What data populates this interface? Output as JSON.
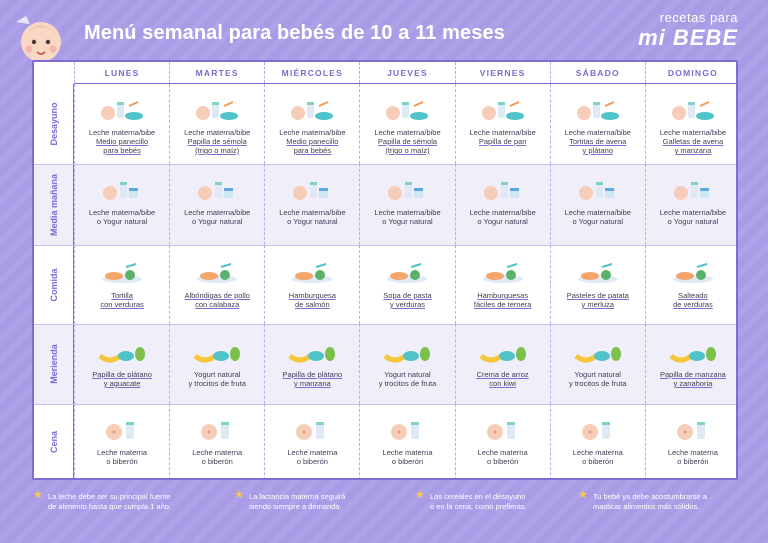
{
  "title": "Menú semanal para bebés de 10 a 11 meses",
  "brand": {
    "top": "recetas para",
    "bottom": "mi BEBE"
  },
  "days": [
    "LUNES",
    "MARTES",
    "MIÉRCOLES",
    "JUEVES",
    "VIERNES",
    "SÁBADO",
    "DOMINGO"
  ],
  "meals": [
    {
      "name": "Desayuno",
      "cells": [
        {
          "l1": "Leche materna/bibe",
          "l2": "Medio panecillo",
          "l3": "para bebés",
          "icon": "bottle-bread-icon"
        },
        {
          "l1": "Leche materna/bibe",
          "l2": "Papilla de sémola",
          "l3": "(trigo o maíz)",
          "icon": "bottle-bowl-icon"
        },
        {
          "l1": "Leche materna/bibe",
          "l2": "Medio panecillo",
          "l3": "para bebés",
          "icon": "bottle-bread-icon"
        },
        {
          "l1": "Leche materna/bibe",
          "l2": "Papilla de sémola",
          "l3": "(trigo o maíz)",
          "icon": "bottle-bowl-icon"
        },
        {
          "l1": "Leche materna/bibe",
          "l2": "Papilla de pan",
          "l3": "",
          "icon": "bottle-bowl-icon"
        },
        {
          "l1": "Leche materna/bibe",
          "l2": "Tortitas de avena",
          "l3": "y plátano",
          "icon": "bottle-pancake-icon"
        },
        {
          "l1": "Leche materna/bibe",
          "l2": "Galletas de avena",
          "l3": "y manzana",
          "icon": "bottle-cookie-icon"
        }
      ]
    },
    {
      "name": "Media mañana",
      "cells": [
        {
          "l1": "Leche materna/bibe",
          "l2": "o Yogur natural",
          "l3": ""
        },
        {
          "l1": "Leche materna/bibe",
          "l2": "o Yogur natural",
          "l3": ""
        },
        {
          "l1": "Leche materna/bibe",
          "l2": "o Yogur natural",
          "l3": ""
        },
        {
          "l1": "Leche materna/bibe",
          "l2": "o Yogur natural",
          "l3": ""
        },
        {
          "l1": "Leche materna/bibe",
          "l2": "o Yogur natural",
          "l3": ""
        },
        {
          "l1": "Leche materna/bibe",
          "l2": "o Yogur natural",
          "l3": ""
        },
        {
          "l1": "Leche materna/bibe",
          "l2": "o Yogur natural",
          "l3": ""
        }
      ]
    },
    {
      "name": "Comida",
      "cells": [
        {
          "l1": "Tortilla",
          "l2": "con verduras"
        },
        {
          "l1": "Albóndigas de pollo",
          "l2": "con calabaza"
        },
        {
          "l1": "Hamburguesa",
          "l2": "de salmón"
        },
        {
          "l1": "Sopa de pasta",
          "l2": "y verduras"
        },
        {
          "l1": "Hamburguesas",
          "l2": "fáciles de ternera"
        },
        {
          "l1": "Pasteles de patata",
          "l2": "y merluza"
        },
        {
          "l1": "Salteado",
          "l2": "de verduras"
        }
      ]
    },
    {
      "name": "Merienda",
      "cells": [
        {
          "l1": "Papilla de plátano",
          "l2": "y aguacate",
          "u": true
        },
        {
          "l1": "Yogurt natural",
          "l2": "y trocitos de fruta",
          "u": false
        },
        {
          "l1": "Papilla de plátano",
          "l2": "y manzana",
          "u": true
        },
        {
          "l1": "Yogurt natural",
          "l2": "y trocitos de fruta",
          "u": false
        },
        {
          "l1": "Crema de arroz",
          "l2": "con kiwi",
          "u": true
        },
        {
          "l1": "Yogurt natural",
          "l2": "y trocitos de fruta",
          "u": false
        },
        {
          "l1": "Papilla de manzana",
          "l2": "y zanahoria",
          "u": true
        }
      ]
    },
    {
      "name": "Cena",
      "cells": [
        {
          "l1": "Leche materna",
          "l2": "o biberón"
        },
        {
          "l1": "Leche materna",
          "l2": "o biberón"
        },
        {
          "l1": "Leche materna",
          "l2": "o biberón"
        },
        {
          "l1": "Leche materna",
          "l2": "o biberón"
        },
        {
          "l1": "Leche materna",
          "l2": "o biberón"
        },
        {
          "l1": "Leche materna",
          "l2": "o biberón"
        },
        {
          "l1": "Leche materna",
          "l2": "o biberón"
        }
      ]
    }
  ],
  "notes": [
    {
      "l1": "La leche debe ser su principal fuente",
      "l2": "de alimento hasta que cumpla 1 año."
    },
    {
      "l1": "La lactancia materna seguirá",
      "l2": "siendo siempre a demanda."
    },
    {
      "l1": "Los cereales en el desayuno",
      "l2": "o en la cena, como prefieras."
    },
    {
      "l1": "Tu bebé ya debe acostumbrarse a",
      "l2": "masticar alimentos más sólidos."
    }
  ],
  "colors": {
    "accent": "#7d6ed6",
    "bg": "#a99be6",
    "star": "#f7c94a"
  }
}
